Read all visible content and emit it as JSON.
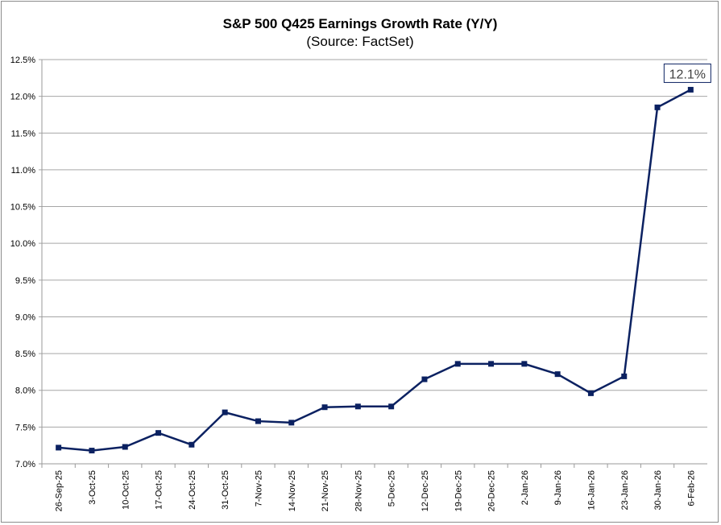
{
  "chart_data": {
    "type": "line",
    "title": "S&P 500 Q425 Earnings Growth Rate (Y/Y)",
    "subtitle": "(Source: FactSet)",
    "xlabel": "",
    "ylabel": "",
    "ylim": [
      7.0,
      12.5
    ],
    "ytick_step": 0.5,
    "ytick_labels": [
      "7.0%",
      "7.5%",
      "8.0%",
      "8.5%",
      "9.0%",
      "9.5%",
      "10.0%",
      "10.5%",
      "11.0%",
      "11.5%",
      "12.0%",
      "12.5%"
    ],
    "grid": true,
    "legend": "none",
    "line_color": "#0b2161",
    "categories": [
      "26-Sep-25",
      "3-Oct-25",
      "10-Oct-25",
      "17-Oct-25",
      "24-Oct-25",
      "31-Oct-25",
      "7-Nov-25",
      "14-Nov-25",
      "21-Nov-25",
      "28-Nov-25",
      "5-Dec-25",
      "12-Dec-25",
      "19-Dec-25",
      "26-Dec-25",
      "2-Jan-26",
      "9-Jan-26",
      "16-Jan-26",
      "23-Jan-26",
      "30-Jan-26",
      "6-Feb-26"
    ],
    "values": [
      7.22,
      7.18,
      7.23,
      7.42,
      7.26,
      7.7,
      7.58,
      7.56,
      7.77,
      7.78,
      7.78,
      8.15,
      8.36,
      8.36,
      8.36,
      8.22,
      7.96,
      8.19,
      11.85,
      12.09
    ],
    "annotations": [
      {
        "category": "6-Feb-26",
        "text": "12.1%"
      }
    ]
  }
}
